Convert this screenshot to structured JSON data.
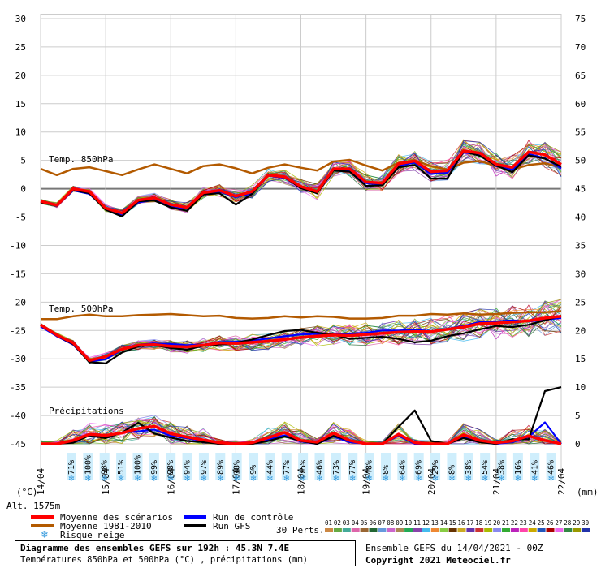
{
  "chart_data": {
    "type": "line",
    "title": "Diagramme des ensembles GEFS sur 192h : 45.3N 7.4E",
    "subtitle": "Températures 850hPa et 500hPa (°C) , précipitations (mm)",
    "left_axis": {
      "unit": "(°C)",
      "ticks": [
        30,
        25,
        20,
        15,
        10,
        5,
        0,
        -5,
        -10,
        -15,
        -20,
        -25,
        -30,
        -35,
        -40,
        -45
      ],
      "range": [
        -45,
        30
      ]
    },
    "right_axis": {
      "unit": "(mm)",
      "ticks": [
        75,
        70,
        65,
        60,
        55,
        50,
        45,
        40,
        35,
        30,
        25,
        20,
        15,
        10,
        5,
        0
      ]
    },
    "x_labels": [
      "14/04",
      "15/04",
      "16/04",
      "17/04",
      "18/04",
      "19/04",
      "20/04",
      "21/04",
      "22/04"
    ],
    "altitude": "Alt. 1575m",
    "panel_labels": {
      "t850": "Temp. 850hPa",
      "t500": "Temp. 500hPa",
      "precip": "Précipitations"
    },
    "time_steps_per_day": 4,
    "series": [
      {
        "name": "Moyenne des scénarios",
        "color": "#ff0000",
        "group": "t850",
        "values": [
          -2.2,
          -2.9,
          0,
          -0.5,
          -3.4,
          -4.3,
          -2,
          -1.6,
          -2.8,
          -3.3,
          -0.7,
          -0.3,
          -1.3,
          -0.5,
          2.4,
          2.1,
          0.4,
          -0.5,
          3.5,
          3.5,
          1.2,
          1,
          4.4,
          4.9,
          3,
          3.2,
          6.7,
          6.3,
          4.3,
          3.8,
          6.5,
          6,
          4.3
        ]
      },
      {
        "name": "Run de contrôle",
        "color": "#0000ff",
        "group": "t850",
        "values": [
          -2.3,
          -3,
          -0.3,
          -0.9,
          -3.6,
          -4.6,
          -2.4,
          -2,
          -3.2,
          -3.5,
          -0.9,
          -0.5,
          -1.5,
          -0.8,
          2.3,
          1.9,
          0.3,
          -0.6,
          3.3,
          3.2,
          1,
          0.7,
          4.1,
          4.6,
          2.6,
          2.8,
          6.4,
          6,
          4,
          3.3,
          6.1,
          5.4,
          3.6
        ]
      },
      {
        "name": "Run GFS",
        "color": "#000000",
        "group": "t850",
        "values": [
          -2.4,
          -3,
          -0.2,
          -0.8,
          -3.7,
          -4.9,
          -2.2,
          -2.1,
          -3.3,
          -3.9,
          -1,
          -0.8,
          -2.8,
          -0.9,
          2.6,
          2,
          0.1,
          -0.8,
          3.2,
          3,
          0.5,
          0.6,
          3.8,
          4.2,
          1.8,
          1.8,
          6.6,
          5.8,
          4.1,
          2.9,
          5.9,
          5.3,
          3.9
        ]
      },
      {
        "name": "Moyenne 1981-2010",
        "color": "#b35a00",
        "group": "t850",
        "values": [
          3.5,
          2.4,
          3.5,
          3.8,
          3.1,
          2.4,
          3.4,
          4.3,
          3.5,
          2.7,
          4,
          4.3,
          3.6,
          2.7,
          3.7,
          4.3,
          3.7,
          3.2,
          4.8,
          5.1,
          4.1,
          3.2,
          4.6,
          5,
          4,
          3.4,
          4.6,
          4.9,
          4,
          3.4,
          4.2,
          4.5,
          3.8
        ]
      },
      {
        "name": "Moyenne des scénarios",
        "color": "#ff0000",
        "group": "t500",
        "values": [
          -24,
          -25.8,
          -27.2,
          -30.3,
          -29.6,
          -28.3,
          -27.6,
          -27.5,
          -27.8,
          -27.9,
          -27.6,
          -27.2,
          -27.3,
          -27.1,
          -26.9,
          -26.6,
          -26.2,
          -26,
          -25.8,
          -25.9,
          -25.7,
          -25.5,
          -25.3,
          -25.2,
          -25.2,
          -24.8,
          -24.4,
          -23.8,
          -23.7,
          -23.5,
          -23.3,
          -22.8,
          -22.5
        ]
      },
      {
        "name": "Run de contrôle",
        "color": "#0000ff",
        "group": "t500",
        "values": [
          -24.3,
          -26,
          -27.5,
          -30.5,
          -30.1,
          -28.4,
          -27.5,
          -27.3,
          -27.4,
          -27.6,
          -27.5,
          -27.1,
          -27,
          -26.8,
          -26.4,
          -26,
          -25.7,
          -25.6,
          -25.5,
          -25.6,
          -25.4,
          -25,
          -25,
          -24.9,
          -25.1,
          -24.7,
          -24.2,
          -23.5,
          -23.4,
          -23.2,
          -23.4,
          -23.1,
          -22.8
        ]
      },
      {
        "name": "Run GFS",
        "color": "#000000",
        "group": "t500",
        "values": [
          -24.1,
          -25.9,
          -27.4,
          -30.6,
          -30.8,
          -28.9,
          -27.8,
          -27.6,
          -28.1,
          -28.4,
          -27.7,
          -27.5,
          -27.2,
          -26.6,
          -25.8,
          -25.1,
          -24.9,
          -25.4,
          -25.7,
          -26.5,
          -26.3,
          -26.1,
          -26.5,
          -27.1,
          -26.8,
          -26,
          -25.5,
          -24.8,
          -24.2,
          -24.4,
          -24,
          -23.2,
          -22.4
        ]
      },
      {
        "name": "Moyenne 1981-2010",
        "color": "#b35a00",
        "group": "t500",
        "values": [
          -23,
          -23,
          -22.5,
          -22.2,
          -22.5,
          -22.5,
          -22.3,
          -22.2,
          -22.1,
          -22.3,
          -22.5,
          -22.4,
          -22.8,
          -22.9,
          -22.8,
          -22.5,
          -22.7,
          -22.5,
          -22.6,
          -22.9,
          -22.9,
          -22.8,
          -22.4,
          -22.4,
          -22.1,
          -22.2,
          -22,
          -22.2,
          -22.1,
          -21.9,
          -21.8,
          -21.8,
          -21.6
        ]
      },
      {
        "name": "Moyenne des scénarios",
        "color": "#ff0000",
        "group": "precip",
        "values": [
          0,
          0,
          0.6,
          1.7,
          1.5,
          1.9,
          2.7,
          3.1,
          1.8,
          1.2,
          0.7,
          0.2,
          0,
          0.2,
          1.1,
          2,
          0.6,
          0.3,
          1.9,
          0.6,
          0,
          0,
          1.7,
          0.2,
          0,
          0,
          1.6,
          0.6,
          0.2,
          0.5,
          1.4,
          0.6,
          0
        ]
      },
      {
        "name": "Run de contrôle",
        "color": "#0000ff",
        "group": "precip",
        "values": [
          0,
          0,
          0.4,
          1.5,
          1.3,
          2,
          2.2,
          2.5,
          1.4,
          1,
          0.5,
          0,
          0,
          0,
          0.8,
          1.5,
          0.4,
          0,
          1.3,
          0.3,
          0,
          0,
          1.4,
          0,
          0,
          0,
          1.2,
          0.3,
          0,
          0.3,
          1.2,
          3.8,
          0
        ]
      },
      {
        "name": "Run GFS",
        "color": "#000000",
        "group": "precip",
        "values": [
          0,
          0,
          0.2,
          1.5,
          1,
          2,
          3.7,
          1.8,
          1.1,
          0.5,
          0.3,
          0,
          0,
          0,
          0.5,
          1.3,
          0.5,
          0,
          1.4,
          0.6,
          0,
          0,
          3,
          5.9,
          0.5,
          0,
          1,
          0.3,
          0,
          0.8,
          0.8,
          9.3,
          10
        ]
      }
    ],
    "snow_risk": [
      "71%",
      "100%",
      "98%",
      "51%",
      "100%",
      "99%",
      "98%",
      "94%",
      "97%",
      "89%",
      "18%",
      "9%",
      "44%",
      "77%",
      "75%",
      "46%",
      "73%",
      "77%",
      "48%",
      "8%",
      "64%",
      "69%",
      "29%",
      "8%",
      "38%",
      "54%",
      "38%",
      "16%",
      "41%",
      "46%"
    ],
    "legend": {
      "items": [
        {
          "label": "Moyenne des scénarios",
          "color": "#ff0000"
        },
        {
          "label": "Moyenne 1981-2010",
          "color": "#b35a00"
        },
        {
          "label": "Risque neige",
          "color": "#66bbee"
        },
        {
          "label": "Run de contrôle",
          "color": "#0000ff"
        },
        {
          "label": "Run GFS",
          "color": "#000000"
        }
      ],
      "perts_label": "30 Perts.",
      "perts_numbers": [
        "01",
        "02",
        "03",
        "04",
        "05",
        "06",
        "07",
        "08",
        "09",
        "10",
        "11",
        "12",
        "13",
        "14",
        "15",
        "16",
        "17",
        "18",
        "19",
        "20",
        "21",
        "22",
        "23",
        "24",
        "25",
        "26",
        "27",
        "28",
        "29",
        "30"
      ],
      "perts_colors": [
        "#cc8844",
        "#66aa44",
        "#44aa99",
        "#dd66aa",
        "#996633",
        "#226633",
        "#6699dd",
        "#cc66cc",
        "#aa8855",
        "#22aa55",
        "#8844aa",
        "#44bbee",
        "#ee8833",
        "#88cc44",
        "#663300",
        "#ccaa22",
        "#6633aa",
        "#cc3333",
        "#aabb00",
        "#8888ee",
        "#33aa33",
        "#bb22bb",
        "#ff44aa",
        "#ccaa00",
        "#2255bb",
        "#aa0000",
        "#ee66ee",
        "#338844",
        "#999900",
        "#2233aa"
      ]
    }
  },
  "footer": {
    "title": "Diagramme des ensembles GEFS sur 192h : 45.3N 7.4E",
    "subtitle": "Températures 850hPa et 500hPa (°C) , précipitations (mm)",
    "run_info": "Ensemble GEFS du 14/04/2021 - 00Z",
    "copyright": "Copyright 2021 Meteociel.fr"
  }
}
